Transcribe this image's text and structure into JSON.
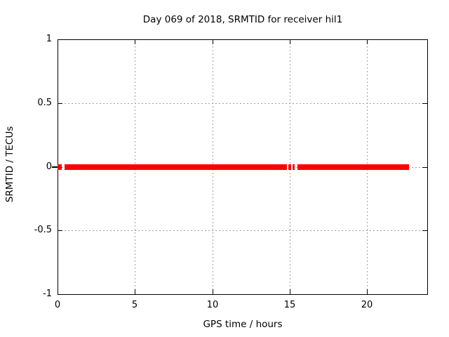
{
  "chart_data": {
    "type": "line",
    "title": "Day 069 of 2018, SRMTID for receiver hil1",
    "xlabel": "GPS time / hours",
    "ylabel": "SRMTID / TECUs",
    "xlim": [
      0,
      23.9
    ],
    "ylim": [
      -1,
      1
    ],
    "xticks": [
      0,
      5,
      10,
      15,
      20
    ],
    "yticks": [
      1,
      0.5,
      0,
      -0.5,
      -1
    ],
    "grid": true,
    "legend": "none",
    "series": [
      {
        "name": "SRMTID",
        "color": "#ff0000",
        "style": "thick flat band of points at y = 0",
        "y_value": 0,
        "band_halfwidth": 0.022,
        "segments_x_hours": [
          [
            0.0,
            0.27
          ],
          [
            0.45,
            14.83
          ],
          [
            14.92,
            15.1
          ],
          [
            15.19,
            15.33
          ],
          [
            15.51,
            22.74
          ]
        ]
      }
    ]
  },
  "colors": {
    "background": "#ffffff",
    "border": "#000000",
    "grid": "#a0a0a0",
    "text": "#000000",
    "series": "#ff0000"
  }
}
